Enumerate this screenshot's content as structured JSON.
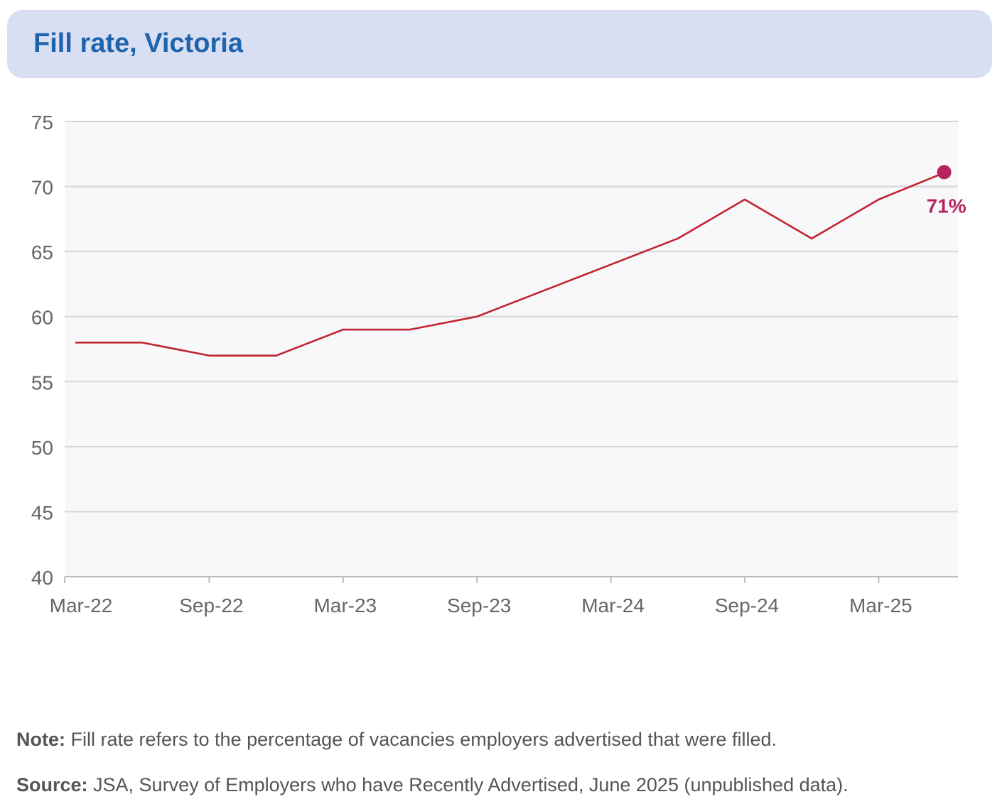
{
  "header": {
    "title": "Fill rate, Victoria"
  },
  "chart_data": {
    "type": "line",
    "title": "Fill rate, Victoria",
    "xlabel": "",
    "ylabel": "",
    "ylim": [
      40,
      75
    ],
    "yticks": [
      40,
      45,
      50,
      55,
      60,
      65,
      70,
      75
    ],
    "x": [
      "Mar-22",
      "Jun-22",
      "Sep-22",
      "Dec-22",
      "Mar-23",
      "Jun-23",
      "Sep-23",
      "Dec-23",
      "Mar-24",
      "Jun-24",
      "Sep-24",
      "Dec-24",
      "Mar-25",
      "Jun-25"
    ],
    "xtick_labels": [
      "Mar-22",
      "Sep-22",
      "Mar-23",
      "Sep-23",
      "Mar-24",
      "Sep-24",
      "Mar-25"
    ],
    "series": [
      {
        "values": [
          58,
          58,
          57,
          57,
          59,
          59,
          60,
          62,
          64,
          66,
          69,
          66,
          69,
          71.1
        ],
        "color": "#c0242f"
      }
    ],
    "end_label": "71%",
    "end_marker_color": "#b8245e",
    "grid": true,
    "plot_background": "#f8f8fb"
  },
  "notes": {
    "note_label": "Note:",
    "note_text": " Fill rate refers to the percentage of vacancies employers advertised that were filled.",
    "source_label": "Source:",
    "source_text": " JSA, Survey of Employers who have Recently Advertised, June 2025 (unpublished data)."
  }
}
